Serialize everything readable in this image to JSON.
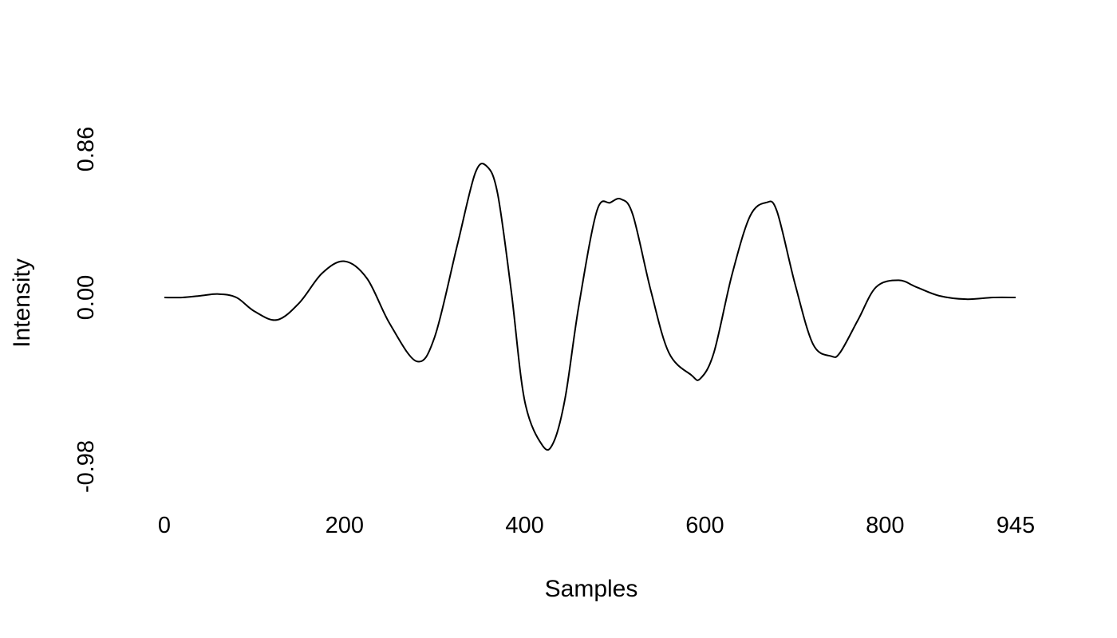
{
  "chart_data": {
    "type": "line",
    "title": "",
    "xlabel": "Samples",
    "ylabel": "Intensity",
    "xlim": [
      0,
      945
    ],
    "ylim": [
      -0.98,
      0.86
    ],
    "x_ticks": [
      {
        "value": 0,
        "label": "0"
      },
      {
        "value": 200,
        "label": "200"
      },
      {
        "value": 400,
        "label": "400"
      },
      {
        "value": 600,
        "label": "600"
      },
      {
        "value": 800,
        "label": "800"
      },
      {
        "value": 945,
        "label": "945"
      }
    ],
    "y_ticks": [
      {
        "value": -0.98,
        "label": "-0.98"
      },
      {
        "value": 0.0,
        "label": "0.00"
      },
      {
        "value": 0.86,
        "label": "0.86"
      }
    ],
    "grid": false,
    "legend": "none",
    "line_color": "#000000",
    "series": [
      {
        "x": [
          0,
          20,
          40,
          60,
          80,
          100,
          125,
          150,
          175,
          200,
          225,
          250,
          280,
          300,
          325,
          345,
          358,
          370,
          385,
          400,
          420,
          432,
          445,
          460,
          480,
          495,
          507,
          520,
          540,
          560,
          585,
          595,
          610,
          630,
          650,
          668,
          680,
          700,
          720,
          740,
          750,
          770,
          790,
          815,
          835,
          860,
          890,
          920,
          945
        ],
        "y": [
          0.0,
          0.0,
          0.01,
          0.02,
          0.0,
          -0.08,
          -0.13,
          -0.03,
          0.14,
          0.21,
          0.11,
          -0.15,
          -0.37,
          -0.23,
          0.3,
          0.72,
          0.76,
          0.6,
          0.04,
          -0.6,
          -0.86,
          -0.84,
          -0.58,
          -0.05,
          0.5,
          0.55,
          0.57,
          0.48,
          0.04,
          -0.32,
          -0.45,
          -0.47,
          -0.32,
          0.13,
          0.47,
          0.55,
          0.5,
          0.08,
          -0.27,
          -0.34,
          -0.32,
          -0.13,
          0.06,
          0.1,
          0.06,
          0.01,
          -0.01,
          0.0,
          0.0
        ]
      }
    ]
  }
}
